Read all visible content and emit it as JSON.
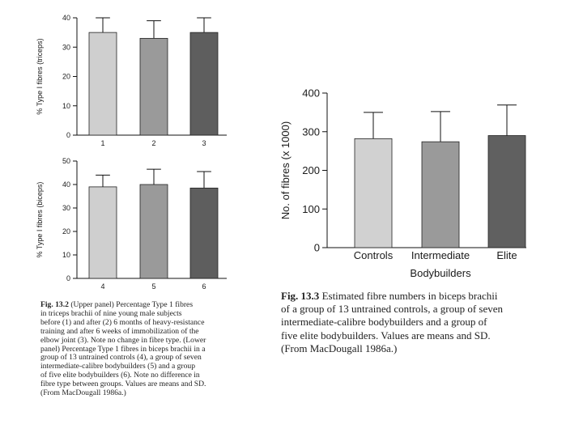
{
  "chart_data": [
    {
      "id": "triceps",
      "type": "bar",
      "categories": [
        "1",
        "2",
        "3"
      ],
      "values": [
        35,
        33,
        35
      ],
      "errors": [
        5,
        6,
        5
      ],
      "colors": [
        "#cfcfcf",
        "#9a9a9a",
        "#5e5e5e"
      ],
      "ylabel": "% Type I fibres (triceps)",
      "ylim": [
        0,
        40
      ],
      "yticks": [
        0,
        10,
        20,
        30,
        40
      ]
    },
    {
      "id": "biceps",
      "type": "bar",
      "categories": [
        "4",
        "5",
        "6"
      ],
      "values": [
        39,
        40,
        38.5
      ],
      "errors": [
        5,
        6.5,
        7
      ],
      "colors": [
        "#cfcfcf",
        "#9a9a9a",
        "#5e5e5e"
      ],
      "ylabel": "% Type I fibres (biceps)",
      "ylim": [
        0,
        50
      ],
      "yticks": [
        0,
        10,
        20,
        30,
        40,
        50
      ]
    },
    {
      "id": "fibre-numbers",
      "type": "bar",
      "categories": [
        "Controls",
        "Intermediate",
        "Elite"
      ],
      "values": [
        282,
        274,
        290
      ],
      "errors": [
        68,
        78,
        79
      ],
      "colors": [
        "#d1d1d1",
        "#9a9a9a",
        "#606060"
      ],
      "xlabel": "Bodybuilders",
      "ylabel": "No. of fibres (x 1000)",
      "ylim": [
        0,
        400
      ],
      "yticks": [
        0,
        100,
        200,
        300,
        400
      ]
    }
  ],
  "caption_left": {
    "label": "Fig. 13.2",
    "lines": [
      "(Upper panel) Percentage Type 1 fibres",
      "in triceps brachii of nine young male subjects",
      "before (1) and after (2) 6 months of heavy-resistance",
      "training and after 6 weeks of immobilization of the",
      "elbow joint (3). Note no change in fibre type. (Lower",
      "panel) Percentage Type 1 fibres in biceps brachii in a",
      "group of 13 untrained controls (4), a group of seven",
      "intermediate-calibre bodybuilders (5) and a group",
      "of five elite bodybuilders (6). Note no difference in",
      "fibre type between groups. Values are means and SD.",
      "(From MacDougall 1986a.)"
    ]
  },
  "caption_right": {
    "label": "Fig. 13.3",
    "lines": [
      "Estimated fibre numbers in biceps brachii",
      "of a group of 13 untrained controls, a group of seven",
      "intermediate-calibre bodybuilders and a group of",
      "five elite bodybuilders. Values are means and SD.",
      "(From MacDougall 1986a.)"
    ]
  }
}
